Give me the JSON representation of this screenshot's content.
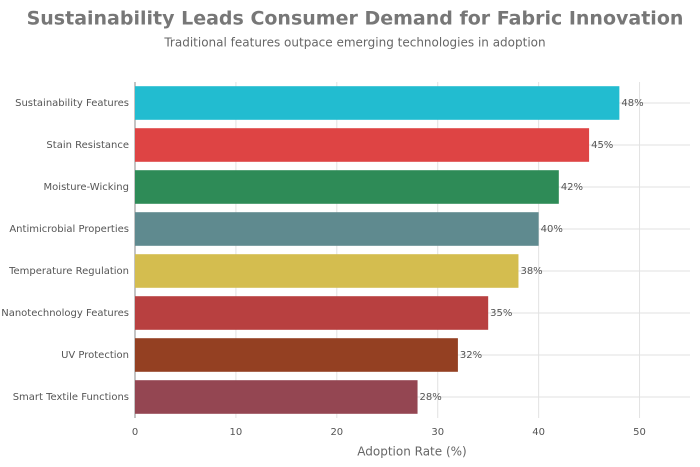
{
  "chart_data": {
    "type": "hbar",
    "title": "Sustainability Leads Consumer Demand for Fabric Innovation",
    "subtitle": "Traditional features outpace emerging technologies in adoption",
    "x_label": "Adoption Rate (%)",
    "categories": [
      "Sustainability Features",
      "Stain Resistance",
      "Moisture-Wicking",
      "Antimicrobial Properties",
      "Temperature Regulation",
      "Nanotechnology Features",
      "UV Protection",
      "Smart Textile Functions"
    ],
    "values": [
      48,
      45,
      42,
      40,
      38,
      35,
      32,
      28
    ],
    "value_labels": [
      "48%",
      "45%",
      "42%",
      "40%",
      "38%",
      "35%",
      "32%",
      "28%"
    ],
    "colors": [
      "#22bcd0",
      "#de4444",
      "#2e8b57",
      "#5f8a8f",
      "#d4bd4f",
      "#b84040",
      "#944022",
      "#944652"
    ],
    "xlim": [
      0,
      55
    ],
    "xticks": [
      0,
      10,
      20,
      30,
      40,
      50
    ],
    "grid": true
  }
}
